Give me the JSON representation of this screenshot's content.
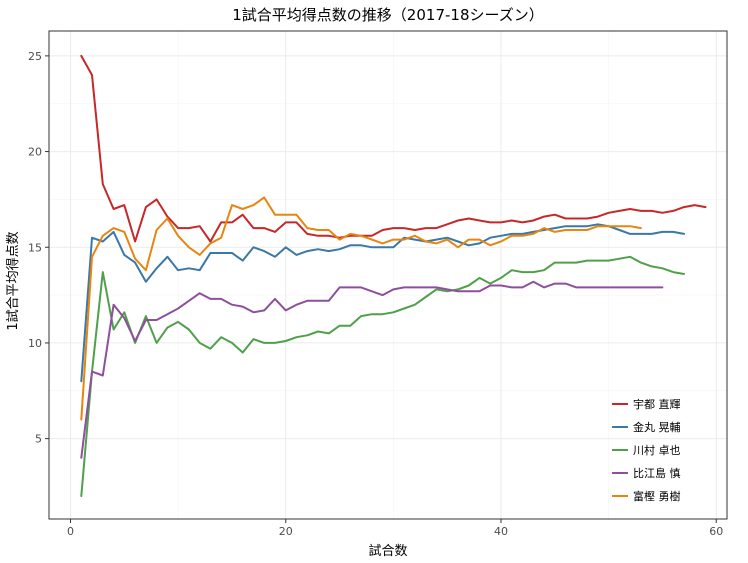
{
  "chart_data": {
    "type": "line",
    "title": "1試合平均得点数の推移（2017-18シーズン）",
    "xlabel": "試合数",
    "ylabel": "1試合平均得点数",
    "xlim": [
      -2,
      61
    ],
    "ylim": [
      0.8,
      26.3
    ],
    "x_ticks": [
      0,
      20,
      40,
      60
    ],
    "y_ticks": [
      5,
      10,
      15,
      20,
      25
    ],
    "grid": true,
    "legend_position": "bottom-right",
    "series": [
      {
        "name": "宇都 直輝",
        "color": "#C62828",
        "values": [
          25.0,
          24.0,
          18.3,
          17.0,
          17.2,
          15.3,
          17.1,
          17.5,
          16.6,
          16.0,
          16.0,
          16.1,
          15.3,
          16.3,
          16.3,
          16.7,
          16.0,
          16.0,
          15.8,
          16.3,
          16.3,
          15.7,
          15.6,
          15.6,
          15.5,
          15.6,
          15.6,
          15.6,
          15.9,
          16.0,
          16.0,
          15.9,
          16.0,
          16.0,
          16.2,
          16.4,
          16.5,
          16.4,
          16.3,
          16.3,
          16.4,
          16.3,
          16.4,
          16.6,
          16.7,
          16.5,
          16.5,
          16.5,
          16.6,
          16.8,
          16.9,
          17.0,
          16.9,
          16.9,
          16.8,
          16.9,
          17.1,
          17.2,
          17.1
        ]
      },
      {
        "name": "金丸 晃輔",
        "color": "#3A78A8",
        "values": [
          8.0,
          15.5,
          15.3,
          15.8,
          14.6,
          14.2,
          13.2,
          13.9,
          14.5,
          13.8,
          13.9,
          13.8,
          14.7,
          14.7,
          14.7,
          14.3,
          15.0,
          14.8,
          14.5,
          15.0,
          14.6,
          14.8,
          14.9,
          14.8,
          14.9,
          15.1,
          15.1,
          15.0,
          15.0,
          15.0,
          15.5,
          15.4,
          15.3,
          15.4,
          15.5,
          15.3,
          15.1,
          15.2,
          15.5,
          15.6,
          15.7,
          15.7,
          15.8,
          15.9,
          16.0,
          16.1,
          16.1,
          16.1,
          16.2,
          16.1,
          15.9,
          15.7,
          15.7,
          15.7,
          15.8,
          15.8,
          15.7
        ]
      },
      {
        "name": "川村 卓也",
        "color": "#4FA04A",
        "values": [
          2.0,
          8.5,
          13.7,
          10.7,
          11.6,
          10.0,
          11.4,
          10.0,
          10.8,
          11.1,
          10.7,
          10.0,
          9.7,
          10.3,
          10.0,
          9.5,
          10.2,
          10.0,
          10.0,
          10.1,
          10.3,
          10.4,
          10.6,
          10.5,
          10.9,
          10.9,
          11.4,
          11.5,
          11.5,
          11.6,
          11.8,
          12.0,
          12.4,
          12.8,
          12.7,
          12.8,
          13.0,
          13.4,
          13.1,
          13.4,
          13.8,
          13.7,
          13.7,
          13.8,
          14.2,
          14.2,
          14.2,
          14.3,
          14.3,
          14.3,
          14.4,
          14.5,
          14.2,
          14.0,
          13.9,
          13.7,
          13.6
        ]
      },
      {
        "name": "比江島 慎",
        "color": "#8E4F9E",
        "values": [
          4.0,
          8.5,
          8.3,
          12.0,
          11.3,
          10.1,
          11.2,
          11.2,
          11.5,
          11.8,
          12.2,
          12.6,
          12.3,
          12.3,
          12.0,
          11.9,
          11.6,
          11.7,
          12.3,
          11.7,
          12.0,
          12.2,
          12.2,
          12.2,
          12.9,
          12.9,
          12.9,
          12.7,
          12.5,
          12.8,
          12.9,
          12.9,
          12.9,
          12.9,
          12.8,
          12.7,
          12.7,
          12.7,
          13.0,
          13.0,
          12.9,
          12.9,
          13.2,
          12.9,
          13.1,
          13.1,
          12.9,
          12.9,
          12.9,
          12.9,
          12.9,
          12.9,
          12.9,
          12.9,
          12.9
        ]
      },
      {
        "name": "富樫 勇樹",
        "color": "#E8850F",
        "values": [
          6.0,
          14.5,
          15.6,
          16.0,
          15.8,
          14.4,
          13.8,
          15.9,
          16.5,
          15.6,
          15.0,
          14.6,
          15.2,
          15.5,
          17.2,
          17.0,
          17.2,
          17.6,
          16.7,
          16.7,
          16.7,
          16.0,
          15.9,
          15.9,
          15.4,
          15.7,
          15.6,
          15.4,
          15.2,
          15.4,
          15.4,
          15.6,
          15.3,
          15.2,
          15.4,
          15.0,
          15.4,
          15.4,
          15.1,
          15.3,
          15.6,
          15.6,
          15.7,
          16.0,
          15.8,
          15.9,
          15.9,
          15.9,
          16.1,
          16.1,
          16.1,
          16.1,
          16.0
        ]
      }
    ]
  }
}
